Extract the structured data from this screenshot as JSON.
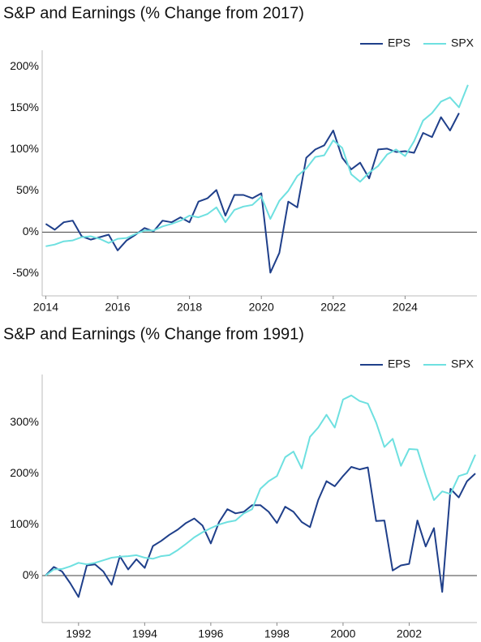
{
  "chart_data": [
    {
      "type": "line",
      "title": "S&P and Earnings (% Change from 2017)",
      "x": [
        2014,
        2014.25,
        2014.5,
        2014.75,
        2015,
        2015.25,
        2015.5,
        2015.75,
        2016,
        2016.25,
        2016.5,
        2016.75,
        2017,
        2017.25,
        2017.5,
        2017.75,
        2018,
        2018.25,
        2018.5,
        2018.75,
        2019,
        2019.25,
        2019.5,
        2019.75,
        2020,
        2020.25,
        2020.5,
        2020.75,
        2021,
        2021.25,
        2021.5,
        2021.75,
        2022,
        2022.25,
        2022.5,
        2022.75,
        2023,
        2023.25,
        2023.5,
        2023.75,
        2024,
        2024.25,
        2024.5,
        2024.75,
        2025,
        2025.25,
        2025.5,
        2025.75
      ],
      "series": [
        {
          "name": "EPS",
          "color": "#1f3f8a",
          "values": [
            10,
            3,
            12,
            14,
            -5,
            -9,
            -6,
            -3,
            -22,
            -10,
            -3,
            5,
            1,
            14,
            12,
            18,
            12,
            37,
            41,
            51,
            20,
            45,
            45,
            41,
            47,
            -49,
            -25,
            37,
            30,
            90,
            100,
            105,
            123,
            90,
            76,
            84,
            65,
            100,
            101,
            97,
            98,
            96,
            120,
            115,
            139,
            123,
            144,
            null
          ]
        },
        {
          "name": "SPX",
          "color": "#6ee0e0",
          "values": [
            -17,
            -15,
            -11,
            -10,
            -6,
            -5,
            -8,
            -13,
            -8,
            -7,
            -2,
            2,
            2,
            7,
            10,
            14,
            20,
            18,
            22,
            30,
            12,
            27,
            31,
            33,
            43,
            16,
            38,
            50,
            68,
            77,
            91,
            93,
            111,
            102,
            70,
            61,
            72,
            80,
            94,
            100,
            92,
            110,
            135,
            144,
            158,
            163,
            151,
            178
          ]
        }
      ],
      "xlim": [
        2013.9,
        2026.0
      ],
      "xticks": [
        2014,
        2016,
        2018,
        2020,
        2022,
        2024
      ],
      "ylim": [
        -77,
        220
      ],
      "yticks": [
        {
          "value": -50,
          "label": "-50%"
        },
        {
          "value": 0,
          "label": "0%"
        },
        {
          "value": 50,
          "label": "50%"
        },
        {
          "value": 100,
          "label": "100%"
        },
        {
          "value": 150,
          "label": "150%"
        },
        {
          "value": 200,
          "label": "200%"
        }
      ],
      "legend": "top-right"
    },
    {
      "type": "line",
      "title": "S&P and Earnings (% Change from 1991)",
      "x": [
        1991,
        1991.25,
        1991.5,
        1991.75,
        1992,
        1992.25,
        1992.5,
        1992.75,
        1993,
        1993.25,
        1993.5,
        1993.75,
        1994,
        1994.25,
        1994.5,
        1994.75,
        1995,
        1995.25,
        1995.5,
        1995.75,
        1996,
        1996.25,
        1996.5,
        1996.75,
        1997,
        1997.25,
        1997.5,
        1997.75,
        1998,
        1998.25,
        1998.5,
        1998.75,
        1999,
        1999.25,
        1999.5,
        1999.75,
        2000,
        2000.25,
        2000.5,
        2000.75,
        2001,
        2001.25,
        2001.5,
        2001.75,
        2002,
        2002.25,
        2002.5,
        2002.75,
        2003,
        2003.25,
        2003.5,
        2003.75,
        2004
      ],
      "series": [
        {
          "name": "EPS",
          "color": "#1f3f8a",
          "values": [
            0,
            17,
            8,
            -15,
            -42,
            20,
            22,
            8,
            -18,
            38,
            12,
            32,
            15,
            58,
            68,
            80,
            90,
            103,
            112,
            98,
            63,
            105,
            130,
            122,
            125,
            138,
            138,
            125,
            103,
            135,
            125,
            105,
            95,
            148,
            185,
            175,
            195,
            213,
            208,
            212,
            107,
            108,
            10,
            20,
            23,
            108,
            57,
            93,
            -32,
            170,
            153,
            185,
            200
          ]
        },
        {
          "name": "SPX",
          "color": "#6ee0e0",
          "values": [
            0,
            12,
            13,
            18,
            25,
            22,
            25,
            30,
            35,
            37,
            38,
            40,
            35,
            33,
            38,
            40,
            50,
            62,
            75,
            85,
            93,
            100,
            105,
            108,
            122,
            130,
            170,
            185,
            195,
            232,
            243,
            210,
            272,
            290,
            315,
            290,
            345,
            353,
            342,
            337,
            300,
            252,
            268,
            215,
            248,
            247,
            195,
            148,
            165,
            160,
            195,
            200,
            237
          ]
        }
      ],
      "xlim": [
        1990.9,
        2004.05
      ],
      "xticks": [
        1992,
        1994,
        1996,
        1998,
        2000,
        2002
      ],
      "ylim": [
        -92,
        394
      ],
      "yticks": [
        {
          "value": 0,
          "label": "0%"
        },
        {
          "value": 100,
          "label": "100%"
        },
        {
          "value": 200,
          "label": "200%"
        },
        {
          "value": 300,
          "label": "300%"
        }
      ],
      "legend": "top-right"
    }
  ]
}
